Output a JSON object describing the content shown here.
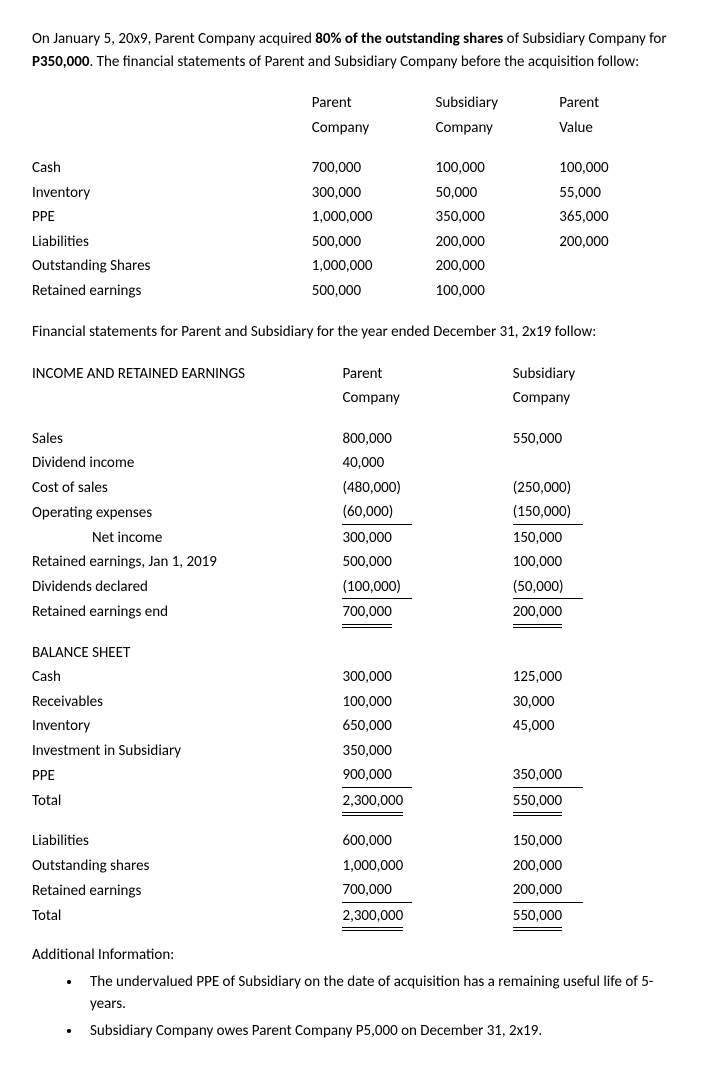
{
  "intro": {
    "pre": "On January 5, 20x9, Parent Company acquired ",
    "bold1": "80% of the outstanding shares",
    "mid": " of Subsidiary Company for ",
    "bold2": "P350,000",
    "post": ". The financial statements of Parent and Subsidiary Company before the acquisition follow:"
  },
  "table1_headers": {
    "h1a": "Parent",
    "h1b": "Company",
    "h2a": "Subsidiary",
    "h2b": "Company",
    "h3a": "Parent",
    "h3b": "Value"
  },
  "table1_rows": [
    {
      "label": "Cash",
      "c1": "700,000",
      "c2": "100,000",
      "c3": "100,000"
    },
    {
      "label": "Inventory",
      "c1": "300,000",
      "c2": "50,000",
      "c3": "55,000"
    },
    {
      "label": "PPE",
      "c1": "1,000,000",
      "c2": "350,000",
      "c3": "365,000"
    },
    {
      "label": "Liabilities",
      "c1": "500,000",
      "c2": "200,000",
      "c3": "200,000"
    },
    {
      "label": "Outstanding Shares",
      "c1": "1,000,000",
      "c2": "200,000",
      "c3": ""
    },
    {
      "label": "Retained earnings",
      "c1": "500,000",
      "c2": "100,000",
      "c3": ""
    }
  ],
  "mid_text": "Financial statements for Parent and Subsidiary for the year ended December 31, 2x19 follow:",
  "section1_title": "INCOME AND RETAINED EARNINGS",
  "table2_headers": {
    "h1a": "Parent",
    "h1b": "Company",
    "h2a": "Subsidiary",
    "h2b": "Company"
  },
  "income_rows": {
    "sales": {
      "label": "Sales",
      "c1": "800,000",
      "c2": "550,000"
    },
    "divinc": {
      "label": "Dividend income",
      "c1": "40,000",
      "c2": ""
    },
    "cos": {
      "label": "Cost of sales",
      "c1": "(480,000)",
      "c2": "(250,000)"
    },
    "opex": {
      "label": "Operating expenses",
      "c1": "(60,000)",
      "c2": "(150,000)"
    },
    "ni": {
      "label": "Net income",
      "c1": "300,000",
      "c2": "150,000"
    },
    "rej1": {
      "label": "Retained earnings, Jan 1, 2019",
      "c1": "500,000",
      "c2": "100,000"
    },
    "divdec": {
      "label": "Dividends declared",
      "c1": "(100,000)",
      "c2": "(50,000)"
    },
    "reend": {
      "label": "Retained earnings end",
      "c1": "700,000",
      "c2": "200,000"
    }
  },
  "section2_title": "BALANCE SHEET",
  "bs_rows": {
    "cash": {
      "label": "Cash",
      "c1": "300,000",
      "c2": "125,000"
    },
    "recv": {
      "label": "Receivables",
      "c1": "100,000",
      "c2": "30,000"
    },
    "inv": {
      "label": "Inventory",
      "c1": "650,000",
      "c2": "45,000"
    },
    "invsub": {
      "label": "Investment in Subsidiary",
      "c1": "350,000",
      "c2": ""
    },
    "ppe": {
      "label": "PPE",
      "c1": "900,000",
      "c2": "350,000"
    },
    "total1": {
      "label": "Total",
      "c1": "2,300,000",
      "c2": " 550,000"
    },
    "liab": {
      "label": "Liabilities",
      "c1": "600,000",
      "c2": "150,000"
    },
    "os": {
      "label": "Outstanding shares",
      "c1": "1,000,000",
      "c2": "200,000"
    },
    "re": {
      "label": "Retained earnings",
      "c1": "700,000",
      "c2": "200,000"
    },
    "total2": {
      "label": "Total",
      "c1": "2,300,000",
      "c2": "550,000"
    }
  },
  "addl_title": "Additional Information:",
  "bullets": [
    "The undervalued PPE of Subsidiary on the date of acquisition has a remaining useful life of 5-years.",
    "Subsidiary Company owes Parent Company P5,000 on December 31, 2x19."
  ]
}
